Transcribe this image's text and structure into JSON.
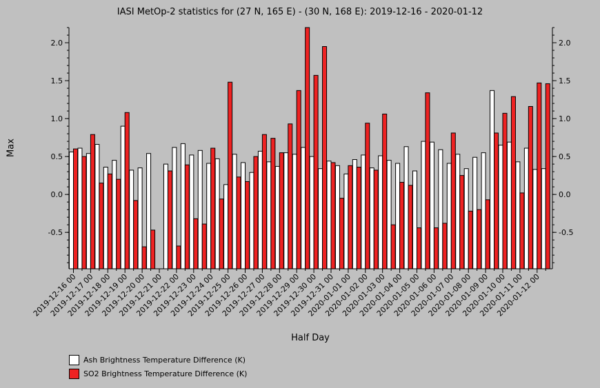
{
  "title": "IASI MetOp-2 statistics for (27 N, 165 E) - (30 N, 168 E): 2019-12-16 - 2020-01-12",
  "legend": {
    "ash": {
      "label": "Ash Brightness Temperature Difference (K)",
      "color": "#ffffff"
    },
    "so2": {
      "label": "SO2 Brightness Temperature Difference (K)",
      "color": "#ee2222"
    }
  },
  "chart_data": {
    "type": "bar",
    "xlabel": "Half Day",
    "ylabel": "Max",
    "ylim": [
      -0.98,
      2.2
    ],
    "yticks": [
      -0.5,
      0.0,
      0.5,
      1.0,
      1.5,
      2.0
    ],
    "ytick_labels": [
      "-0.5",
      "0.0",
      "0.5",
      "1.0",
      "1.5",
      "2.0"
    ],
    "x_tick_labels": [
      "2019-12-16 00",
      "2019-12-17 00",
      "2019-12-18 00",
      "2019-12-19 00",
      "2019-12-20 00",
      "2019-12-21 00",
      "2019-12-22 00",
      "2019-12-23 00",
      "2019-12-24 00",
      "2019-12-25 00",
      "2019-12-26 00",
      "2019-12-27 00",
      "2019-12-28 00",
      "2019-12-29 00",
      "2019-12-30 00",
      "2019-12-31 00",
      "2020-01-01 00",
      "2020-01-02 00",
      "2020-01-03 00",
      "2020-01-04 00",
      "2020-01-05 00",
      "2020-01-06 00",
      "2020-01-07 00",
      "2020-01-08 00",
      "2020-01-09 00",
      "2020-01-10 00",
      "2020-01-11 00",
      "2020-01-12 00"
    ],
    "grid": false,
    "legend_position": "bottom-left",
    "series": [
      {
        "name": "Ash Brightness Temperature Difference (K)",
        "color": "#ffffff",
        "values": [
          0.56,
          0.61,
          0.54,
          0.66,
          0.36,
          0.45,
          0.9,
          0.32,
          0.35,
          0.54,
          null,
          0.4,
          0.62,
          0.67,
          0.52,
          0.58,
          0.41,
          0.47,
          0.13,
          0.53,
          0.42,
          0.29,
          0.57,
          0.43,
          0.37,
          0.55,
          0.53,
          0.62,
          0.5,
          0.34,
          0.44,
          0.38,
          0.27,
          0.46,
          0.52,
          0.35,
          0.51,
          0.45,
          0.41,
          0.63,
          0.31,
          0.7,
          0.69,
          0.59,
          0.41,
          0.53,
          0.34,
          0.49,
          0.55,
          1.37,
          0.65,
          0.69,
          0.43,
          0.61,
          0.33,
          0.34
        ]
      },
      {
        "name": "SO2 Brightness Temperature Difference (K)",
        "color": "#ee2222",
        "values": [
          0.6,
          0.5,
          0.79,
          0.15,
          0.27,
          0.2,
          1.08,
          -0.08,
          -0.69,
          -0.47,
          null,
          0.31,
          -0.68,
          0.39,
          -0.32,
          -0.39,
          0.61,
          -0.06,
          1.48,
          0.23,
          0.17,
          0.5,
          0.79,
          0.74,
          0.55,
          0.93,
          1.37,
          2.2,
          1.57,
          1.95,
          0.42,
          -0.05,
          0.38,
          0.36,
          0.94,
          0.32,
          1.06,
          -0.4,
          0.16,
          0.12,
          -0.44,
          1.34,
          -0.44,
          -0.38,
          0.81,
          0.25,
          -0.22,
          -0.2,
          -0.07,
          0.81,
          1.07,
          1.29,
          0.02,
          1.16,
          1.47,
          1.46
        ]
      }
    ]
  }
}
